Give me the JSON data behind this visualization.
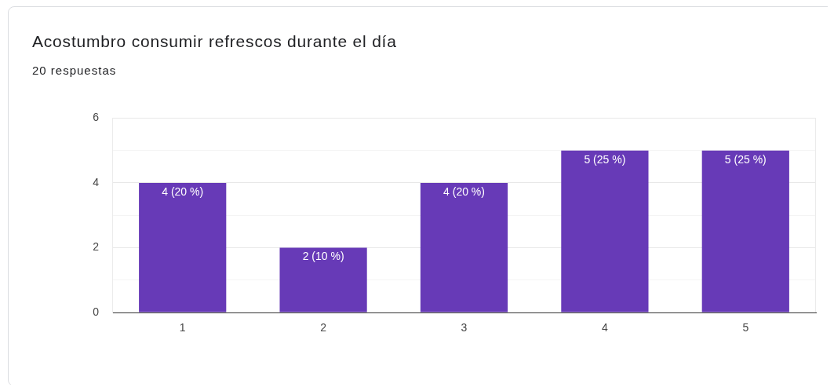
{
  "chart_data": {
    "type": "bar",
    "title": "Acostumbro consumir refrescos durante el día",
    "subtitle": "20 respuestas",
    "categories": [
      "1",
      "2",
      "3",
      "4",
      "5"
    ],
    "values": [
      4,
      2,
      4,
      5,
      5
    ],
    "color": "#673ab7",
    "value_labels": [
      "4 (20 %)",
      "2 (10 %)",
      "4 (20 %)",
      "5 (25 %)",
      "5 (25 %)"
    ],
    "ylim": [
      0,
      6
    ],
    "yticks": [
      0,
      {
        "value": 1,
        "label": null
      },
      2,
      {
        "value": 3,
        "label": null
      },
      4,
      {
        "value": 5,
        "label": null
      },
      6
    ],
    "grid": "y"
  }
}
